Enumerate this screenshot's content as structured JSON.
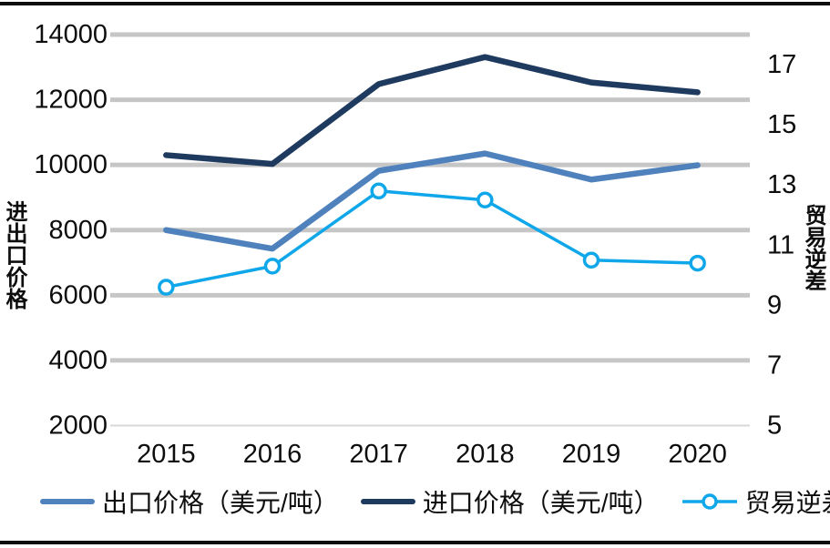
{
  "chart_data": {
    "type": "line",
    "title": "",
    "categories": [
      "2015",
      "2016",
      "2017",
      "2018",
      "2019",
      "2020"
    ],
    "series": [
      {
        "name": "出口价格（美元/吨）",
        "axis": "left",
        "color": "#4F81BD",
        "marker": "none",
        "values": [
          8000,
          7430,
          9820,
          10350,
          9550,
          9990
        ]
      },
      {
        "name": "进口价格（美元/吨）",
        "axis": "left",
        "color": "#1F3A5F",
        "marker": "none",
        "values": [
          10300,
          10030,
          12480,
          13310,
          12530,
          12230
        ]
      },
      {
        "name": "贸易逆差（亿美元）",
        "axis": "right",
        "color": "#0FA7E9",
        "marker": "circle",
        "values": [
          9.6,
          10.3,
          12.8,
          12.5,
          10.5,
          10.4
        ]
      }
    ],
    "left_axis": {
      "title": "进出口价格",
      "min": 2000,
      "max": 14000,
      "ticks": [
        2000,
        4000,
        6000,
        8000,
        10000,
        12000,
        14000
      ]
    },
    "right_axis": {
      "title": "贸易逆差",
      "min": 5,
      "max": 18,
      "ticks": [
        5,
        7,
        9,
        11,
        13,
        15,
        17
      ]
    },
    "grid": true,
    "legend_position": "bottom"
  },
  "palette": {
    "gridline": "#C6C6C6",
    "baseline": "#D8D8D8",
    "text": "#0d0d0d",
    "rule": "#0d0d0d",
    "marker_fill": "#ffffff"
  }
}
